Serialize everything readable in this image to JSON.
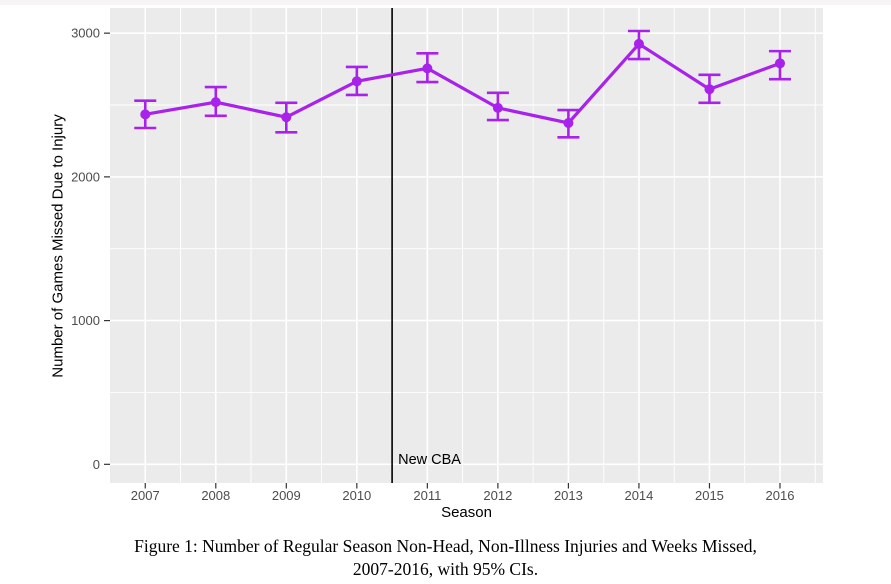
{
  "figure": {
    "caption_line1": "Figure 1: Number of Regular Season Non-Head, Non-Illness Injuries and Weeks Missed,",
    "caption_line2": "2007-2016, with 95% CIs."
  },
  "chart_data": {
    "type": "line",
    "title": "",
    "xlabel": "Season",
    "ylabel": "Number of Games Missed Due to Injury",
    "x": [
      2007,
      2008,
      2009,
      2010,
      2011,
      2012,
      2013,
      2014,
      2015,
      2016
    ],
    "series": [
      {
        "name": "Number of games missed due to injury",
        "values": [
          2435,
          2520,
          2415,
          2665,
          2755,
          2480,
          2375,
          2925,
          2610,
          2790
        ],
        "ci_lower": [
          2340,
          2425,
          2310,
          2570,
          2660,
          2395,
          2275,
          2820,
          2515,
          2680
        ],
        "ci_upper": [
          2530,
          2625,
          2515,
          2765,
          2860,
          2585,
          2465,
          3015,
          2710,
          2875
        ]
      }
    ],
    "error_bars": "95% confidence intervals",
    "xticks": [
      2007,
      2008,
      2009,
      2010,
      2011,
      2012,
      2013,
      2014,
      2015,
      2016
    ],
    "yticks": [
      0,
      1000,
      2000,
      3000
    ],
    "yticks_minor": [
      500,
      1500,
      2500
    ],
    "xlim": [
      2006.5,
      2016.61
    ],
    "ylim": [
      -130,
      3175
    ],
    "grid": "white major and minor gridlines on gray panel",
    "legend": "none",
    "vline": {
      "x": 2010.5,
      "color": "#000000"
    },
    "annotations": [
      {
        "text": "New CBA",
        "x": 2010.5,
        "y": 100,
        "align": "left-of-line-right"
      }
    ],
    "colors": {
      "series": "#A922EB",
      "panel_bg": "#EBEBEB",
      "grid": "#FFFFFF",
      "tick_mark": "#333333",
      "tick_label": "#4D4D4D",
      "axis_title": "#000000",
      "annotation_text": "#000000"
    }
  }
}
